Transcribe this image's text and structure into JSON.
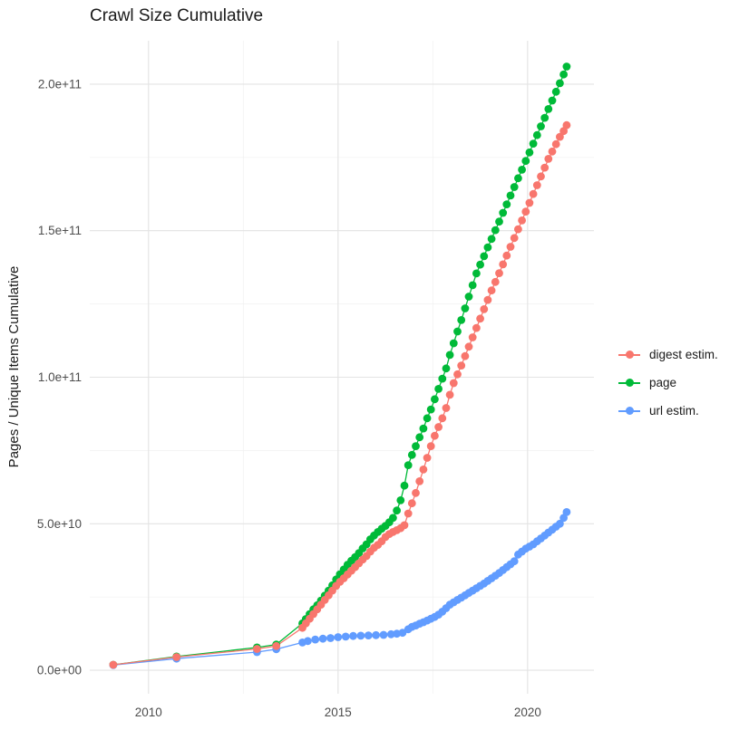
{
  "chart_data": {
    "type": "line",
    "title": "Crawl Size Cumulative",
    "xlabel": "",
    "ylabel": "Pages / Unique Items Cumulative",
    "legend_position": "right",
    "grid": true,
    "xlim": [
      2008.45,
      2021.75
    ],
    "ylim": [
      -8000000000.0,
      214800000000.0
    ],
    "x_ticks": [
      2010,
      2015,
      2020
    ],
    "x_minor_ticks": [
      2012.5,
      2017.5
    ],
    "y_ticks": [
      {
        "value": 0,
        "label": "0.0e+00"
      },
      {
        "value": 50000000000.0,
        "label": "5.0e+10"
      },
      {
        "value": 100000000000.0,
        "label": "1.0e+11"
      },
      {
        "value": 150000000000.0,
        "label": "1.5e+11"
      },
      {
        "value": 200000000000.0,
        "label": "2.0e+11"
      }
    ],
    "y_minor_ticks": [
      25000000000.0,
      75000000000.0,
      125000000000.0,
      175000000000.0
    ],
    "colors": {
      "major_grid": "#E3E3E3",
      "minor_grid": "#F0F0F0",
      "tick_label": "#4D4D4D",
      "text": "#1A1A1A"
    },
    "series": [
      {
        "name": "digest estim.",
        "color": "#F8766D",
        "points": [
          [
            2009.07,
            1900000000.0
          ],
          [
            2010.74,
            4500000000.0
          ],
          [
            2012.86,
            7300000000.0
          ],
          [
            2013.37,
            8300000000.0
          ],
          [
            2014.06,
            14500000000.0
          ],
          [
            2014.15,
            16000000000.0
          ],
          [
            2014.25,
            17600000000.0
          ],
          [
            2014.35,
            19200000000.0
          ],
          [
            2014.45,
            20800000000.0
          ],
          [
            2014.55,
            22400000000.0
          ],
          [
            2014.65,
            24000000000.0
          ],
          [
            2014.75,
            25600000000.0
          ],
          [
            2014.85,
            27200000000.0
          ],
          [
            2014.95,
            28800000000.0
          ],
          [
            2015.05,
            30200000000.0
          ],
          [
            2015.15,
            31400000000.0
          ],
          [
            2015.25,
            32700000000.0
          ],
          [
            2015.35,
            34000000000.0
          ],
          [
            2015.45,
            35200000000.0
          ],
          [
            2015.55,
            36500000000.0
          ],
          [
            2015.65,
            37800000000.0
          ],
          [
            2015.75,
            39000000000.0
          ],
          [
            2015.85,
            40500000000.0
          ],
          [
            2015.95,
            41800000000.0
          ],
          [
            2016.05,
            42800000000.0
          ],
          [
            2016.15,
            44000000000.0
          ],
          [
            2016.25,
            45500000000.0
          ],
          [
            2016.35,
            46500000000.0
          ],
          [
            2016.45,
            47200000000.0
          ],
          [
            2016.55,
            47800000000.0
          ],
          [
            2016.65,
            48500000000.0
          ],
          [
            2016.75,
            49500000000.0
          ],
          [
            2016.85,
            53500000000.0
          ],
          [
            2016.95,
            57000000000.0
          ],
          [
            2017.05,
            60500000000.0
          ],
          [
            2017.15,
            64500000000.0
          ],
          [
            2017.25,
            68500000000.0
          ],
          [
            2017.35,
            72500000000.0
          ],
          [
            2017.45,
            76500000000.0
          ],
          [
            2017.55,
            80000000000.0
          ],
          [
            2017.65,
            83000000000.0
          ],
          [
            2017.75,
            86000000000.0
          ],
          [
            2017.85,
            89500000000.0
          ],
          [
            2017.95,
            94000000000.0
          ],
          [
            2018.05,
            98000000000.0
          ],
          [
            2018.15,
            101000000000.0
          ],
          [
            2018.25,
            104000000000.0
          ],
          [
            2018.35,
            107200000000.0
          ],
          [
            2018.45,
            110400000000.0
          ],
          [
            2018.55,
            113600000000.0
          ],
          [
            2018.65,
            116800000000.0
          ],
          [
            2018.75,
            120000000000.0
          ],
          [
            2018.85,
            123200000000.0
          ],
          [
            2018.95,
            126400000000.0
          ],
          [
            2019.05,
            129600000000.0
          ],
          [
            2019.15,
            132500000000.0
          ],
          [
            2019.25,
            135500000000.0
          ],
          [
            2019.35,
            138500000000.0
          ],
          [
            2019.45,
            141500000000.0
          ],
          [
            2019.55,
            144500000000.0
          ],
          [
            2019.65,
            147500000000.0
          ],
          [
            2019.75,
            150500000000.0
          ],
          [
            2019.85,
            153500000000.0
          ],
          [
            2019.95,
            156500000000.0
          ],
          [
            2020.05,
            159500000000.0
          ],
          [
            2020.15,
            162500000000.0
          ],
          [
            2020.25,
            165500000000.0
          ],
          [
            2020.35,
            168500000000.0
          ],
          [
            2020.45,
            171500000000.0
          ],
          [
            2020.55,
            174500000000.0
          ],
          [
            2020.65,
            177000000000.0
          ],
          [
            2020.75,
            179500000000.0
          ],
          [
            2020.85,
            182000000000.0
          ],
          [
            2020.95,
            184000000000.0
          ],
          [
            2021.03,
            186000000000.0
          ]
        ]
      },
      {
        "name": "page",
        "color": "#00BA38",
        "points": [
          [
            2009.07,
            1900000000.0
          ],
          [
            2010.74,
            4700000000.0
          ],
          [
            2012.86,
            7800000000.0
          ],
          [
            2013.37,
            8800000000.0
          ],
          [
            2014.06,
            16000000000.0
          ],
          [
            2014.15,
            17500000000.0
          ],
          [
            2014.25,
            19200000000.0
          ],
          [
            2014.35,
            20800000000.0
          ],
          [
            2014.45,
            22200000000.0
          ],
          [
            2014.55,
            23800000000.0
          ],
          [
            2014.65,
            25500000000.0
          ],
          [
            2014.75,
            27200000000.0
          ],
          [
            2014.85,
            29000000000.0
          ],
          [
            2014.95,
            31000000000.0
          ],
          [
            2015.05,
            32800000000.0
          ],
          [
            2015.15,
            34400000000.0
          ],
          [
            2015.25,
            36000000000.0
          ],
          [
            2015.35,
            37400000000.0
          ],
          [
            2015.45,
            38600000000.0
          ],
          [
            2015.55,
            40000000000.0
          ],
          [
            2015.65,
            41600000000.0
          ],
          [
            2015.75,
            43000000000.0
          ],
          [
            2015.85,
            44700000000.0
          ],
          [
            2015.95,
            46000000000.0
          ],
          [
            2016.05,
            47200000000.0
          ],
          [
            2016.15,
            48300000000.0
          ],
          [
            2016.25,
            49300000000.0
          ],
          [
            2016.35,
            50500000000.0
          ],
          [
            2016.45,
            52000000000.0
          ],
          [
            2016.55,
            54500000000.0
          ],
          [
            2016.65,
            58000000000.0
          ],
          [
            2016.75,
            63000000000.0
          ],
          [
            2016.85,
            70000000000.0
          ],
          [
            2016.95,
            73500000000.0
          ],
          [
            2017.05,
            76500000000.0
          ],
          [
            2017.15,
            79500000000.0
          ],
          [
            2017.25,
            82500000000.0
          ],
          [
            2017.35,
            86000000000.0
          ],
          [
            2017.45,
            89000000000.0
          ],
          [
            2017.55,
            92500000000.0
          ],
          [
            2017.65,
            96000000000.0
          ],
          [
            2017.75,
            99500000000.0
          ],
          [
            2017.85,
            103000000000.0
          ],
          [
            2017.95,
            107600000000.0
          ],
          [
            2018.05,
            111600000000.0
          ],
          [
            2018.15,
            115600000000.0
          ],
          [
            2018.25,
            119500000000.0
          ],
          [
            2018.35,
            123500000000.0
          ],
          [
            2018.45,
            127500000000.0
          ],
          [
            2018.55,
            131400000000.0
          ],
          [
            2018.65,
            135400000000.0
          ],
          [
            2018.75,
            138400000000.0
          ],
          [
            2018.85,
            141300000000.0
          ],
          [
            2018.95,
            144300000000.0
          ],
          [
            2019.05,
            147200000000.0
          ],
          [
            2019.15,
            150200000000.0
          ],
          [
            2019.25,
            153100000000.0
          ],
          [
            2019.35,
            156100000000.0
          ],
          [
            2019.45,
            159000000000.0
          ],
          [
            2019.55,
            162000000000.0
          ],
          [
            2019.65,
            164900000000.0
          ],
          [
            2019.75,
            167900000000.0
          ],
          [
            2019.85,
            170800000000.0
          ],
          [
            2019.95,
            173800000000.0
          ],
          [
            2020.05,
            176700000000.0
          ],
          [
            2020.15,
            179700000000.0
          ],
          [
            2020.25,
            182600000000.0
          ],
          [
            2020.35,
            185600000000.0
          ],
          [
            2020.45,
            188500000000.0
          ],
          [
            2020.55,
            191500000000.0
          ],
          [
            2020.65,
            194400000000.0
          ],
          [
            2020.75,
            197400000000.0
          ],
          [
            2020.85,
            200300000000.0
          ],
          [
            2020.95,
            203300000000.0
          ],
          [
            2021.03,
            206000000000.0
          ]
        ]
      },
      {
        "name": "url estim.",
        "color": "#619CFF",
        "points": [
          [
            2009.07,
            1800000000.0
          ],
          [
            2010.74,
            4000000000.0
          ],
          [
            2012.86,
            6200000000.0
          ],
          [
            2013.37,
            7200000000.0
          ],
          [
            2014.06,
            9500000000.0
          ],
          [
            2014.2,
            10000000000.0
          ],
          [
            2014.4,
            10500000000.0
          ],
          [
            2014.6,
            10800000000.0
          ],
          [
            2014.8,
            11000000000.0
          ],
          [
            2015.0,
            11300000000.0
          ],
          [
            2015.2,
            11500000000.0
          ],
          [
            2015.4,
            11700000000.0
          ],
          [
            2015.6,
            11800000000.0
          ],
          [
            2015.8,
            11900000000.0
          ],
          [
            2016.0,
            12000000000.0
          ],
          [
            2016.2,
            12100000000.0
          ],
          [
            2016.4,
            12300000000.0
          ],
          [
            2016.55,
            12500000000.0
          ],
          [
            2016.7,
            12800000000.0
          ],
          [
            2016.85,
            14000000000.0
          ],
          [
            2016.95,
            14800000000.0
          ],
          [
            2017.05,
            15300000000.0
          ],
          [
            2017.15,
            15900000000.0
          ],
          [
            2017.25,
            16400000000.0
          ],
          [
            2017.35,
            17000000000.0
          ],
          [
            2017.45,
            17600000000.0
          ],
          [
            2017.55,
            18200000000.0
          ],
          [
            2017.65,
            19000000000.0
          ],
          [
            2017.75,
            20000000000.0
          ],
          [
            2017.85,
            21200000000.0
          ],
          [
            2017.95,
            22400000000.0
          ],
          [
            2018.05,
            23200000000.0
          ],
          [
            2018.15,
            24000000000.0
          ],
          [
            2018.25,
            24800000000.0
          ],
          [
            2018.35,
            25600000000.0
          ],
          [
            2018.45,
            26400000000.0
          ],
          [
            2018.55,
            27200000000.0
          ],
          [
            2018.65,
            28000000000.0
          ],
          [
            2018.75,
            28800000000.0
          ],
          [
            2018.85,
            29600000000.0
          ],
          [
            2018.95,
            30500000000.0
          ],
          [
            2019.05,
            31400000000.0
          ],
          [
            2019.15,
            32300000000.0
          ],
          [
            2019.25,
            33200000000.0
          ],
          [
            2019.35,
            34200000000.0
          ],
          [
            2019.45,
            35200000000.0
          ],
          [
            2019.55,
            36200000000.0
          ],
          [
            2019.65,
            37200000000.0
          ],
          [
            2019.75,
            39500000000.0
          ],
          [
            2019.85,
            40500000000.0
          ],
          [
            2019.95,
            41500000000.0
          ],
          [
            2020.05,
            42200000000.0
          ],
          [
            2020.15,
            43000000000.0
          ],
          [
            2020.25,
            44000000000.0
          ],
          [
            2020.35,
            45000000000.0
          ],
          [
            2020.45,
            46000000000.0
          ],
          [
            2020.55,
            47000000000.0
          ],
          [
            2020.65,
            48000000000.0
          ],
          [
            2020.75,
            49000000000.0
          ],
          [
            2020.85,
            50000000000.0
          ],
          [
            2020.95,
            52000000000.0
          ],
          [
            2021.03,
            54000000000.0
          ]
        ]
      }
    ]
  }
}
